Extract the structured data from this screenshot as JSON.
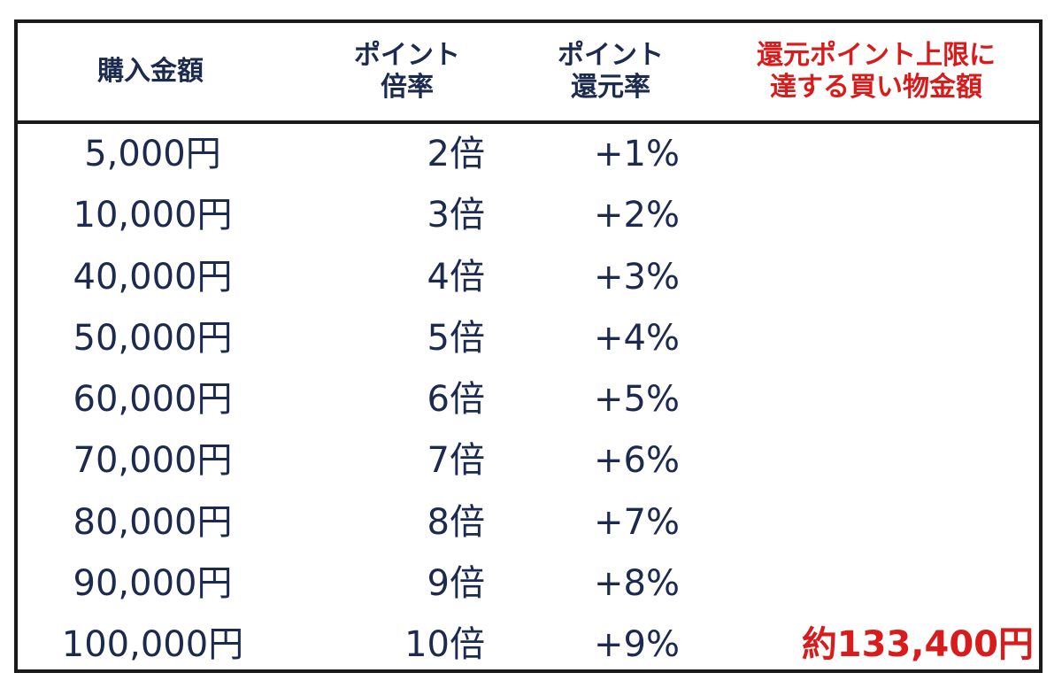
{
  "header": {
    "amount": "購入金額",
    "multiplier": [
      "ポイント",
      "倍率"
    ],
    "rate": [
      "ポイント",
      "還元率"
    ],
    "limit": [
      "還元ポイント上限に",
      "達する買い物金額"
    ]
  },
  "rows": [
    {
      "amount": "5,000円",
      "multiplier": "2倍",
      "rate": "+1%",
      "limit": ""
    },
    {
      "amount": "10,000円",
      "multiplier": "3倍",
      "rate": "+2%",
      "limit": ""
    },
    {
      "amount": "40,000円",
      "multiplier": "4倍",
      "rate": "+3%",
      "limit": ""
    },
    {
      "amount": "50,000円",
      "multiplier": "5倍",
      "rate": "+4%",
      "limit": ""
    },
    {
      "amount": "60,000円",
      "multiplier": "6倍",
      "rate": "+5%",
      "limit": ""
    },
    {
      "amount": "70,000円",
      "multiplier": "7倍",
      "rate": "+6%",
      "limit": ""
    },
    {
      "amount": "80,000円",
      "multiplier": "8倍",
      "rate": "+7%",
      "limit": ""
    },
    {
      "amount": "90,000円",
      "multiplier": "9倍",
      "rate": "+8%",
      "limit": ""
    },
    {
      "amount": "100,000円",
      "multiplier": "10倍",
      "rate": "+9%",
      "limit": "約133,400円"
    }
  ],
  "colors": {
    "text": "#1b2a4e",
    "highlight": "#d81b1b",
    "border": "#1a1a1a"
  }
}
